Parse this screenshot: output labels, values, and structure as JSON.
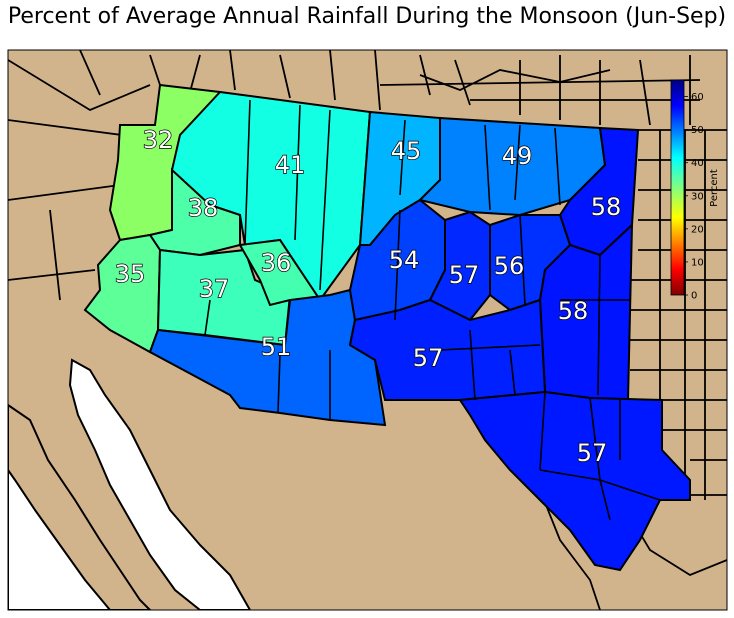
{
  "title": "Percent of Average Annual Rainfall During the Monsoon (Jun-Sep)",
  "colors": {
    "land": "#d2b48c",
    "water": "#ffffff",
    "border": "#000000"
  },
  "regions": [
    {
      "id": "az-northwest",
      "value": "32",
      "color": "#8cff64"
    },
    {
      "id": "az-north-central",
      "value": "41",
      "color": "#12ffe4"
    },
    {
      "id": "az-central-north",
      "value": "38",
      "color": "#4dffa8"
    },
    {
      "id": "az-west",
      "value": "35",
      "color": "#5cff98"
    },
    {
      "id": "az-central",
      "value": "37",
      "color": "#3bffbb"
    },
    {
      "id": "az-east-central",
      "value": "36",
      "color": "#44ffb0"
    },
    {
      "id": "az-south",
      "value": "51",
      "color": "#0064ff"
    },
    {
      "id": "nm-northwest",
      "value": "45",
      "color": "#00b4ff"
    },
    {
      "id": "nm-north-central",
      "value": "49",
      "color": "#0082ff"
    },
    {
      "id": "nm-northeast",
      "value": "58",
      "color": "#0014ff"
    },
    {
      "id": "nm-west-central",
      "value": "54",
      "color": "#0040ff"
    },
    {
      "id": "nm-central",
      "value": "57",
      "color": "#0028ff"
    },
    {
      "id": "nm-east-central",
      "value": "56",
      "color": "#0030ff"
    },
    {
      "id": "nm-east",
      "value": "58",
      "color": "#0014ff"
    },
    {
      "id": "nm-south",
      "value": "57",
      "color": "#0020ff"
    },
    {
      "id": "tx-west",
      "value": "57",
      "color": "#0018ff"
    }
  ],
  "colorbar": {
    "label": "Percent",
    "ticks": [
      "0",
      "10",
      "20",
      "30",
      "40",
      "50",
      "60"
    ],
    "min": 0,
    "max": 65
  }
}
